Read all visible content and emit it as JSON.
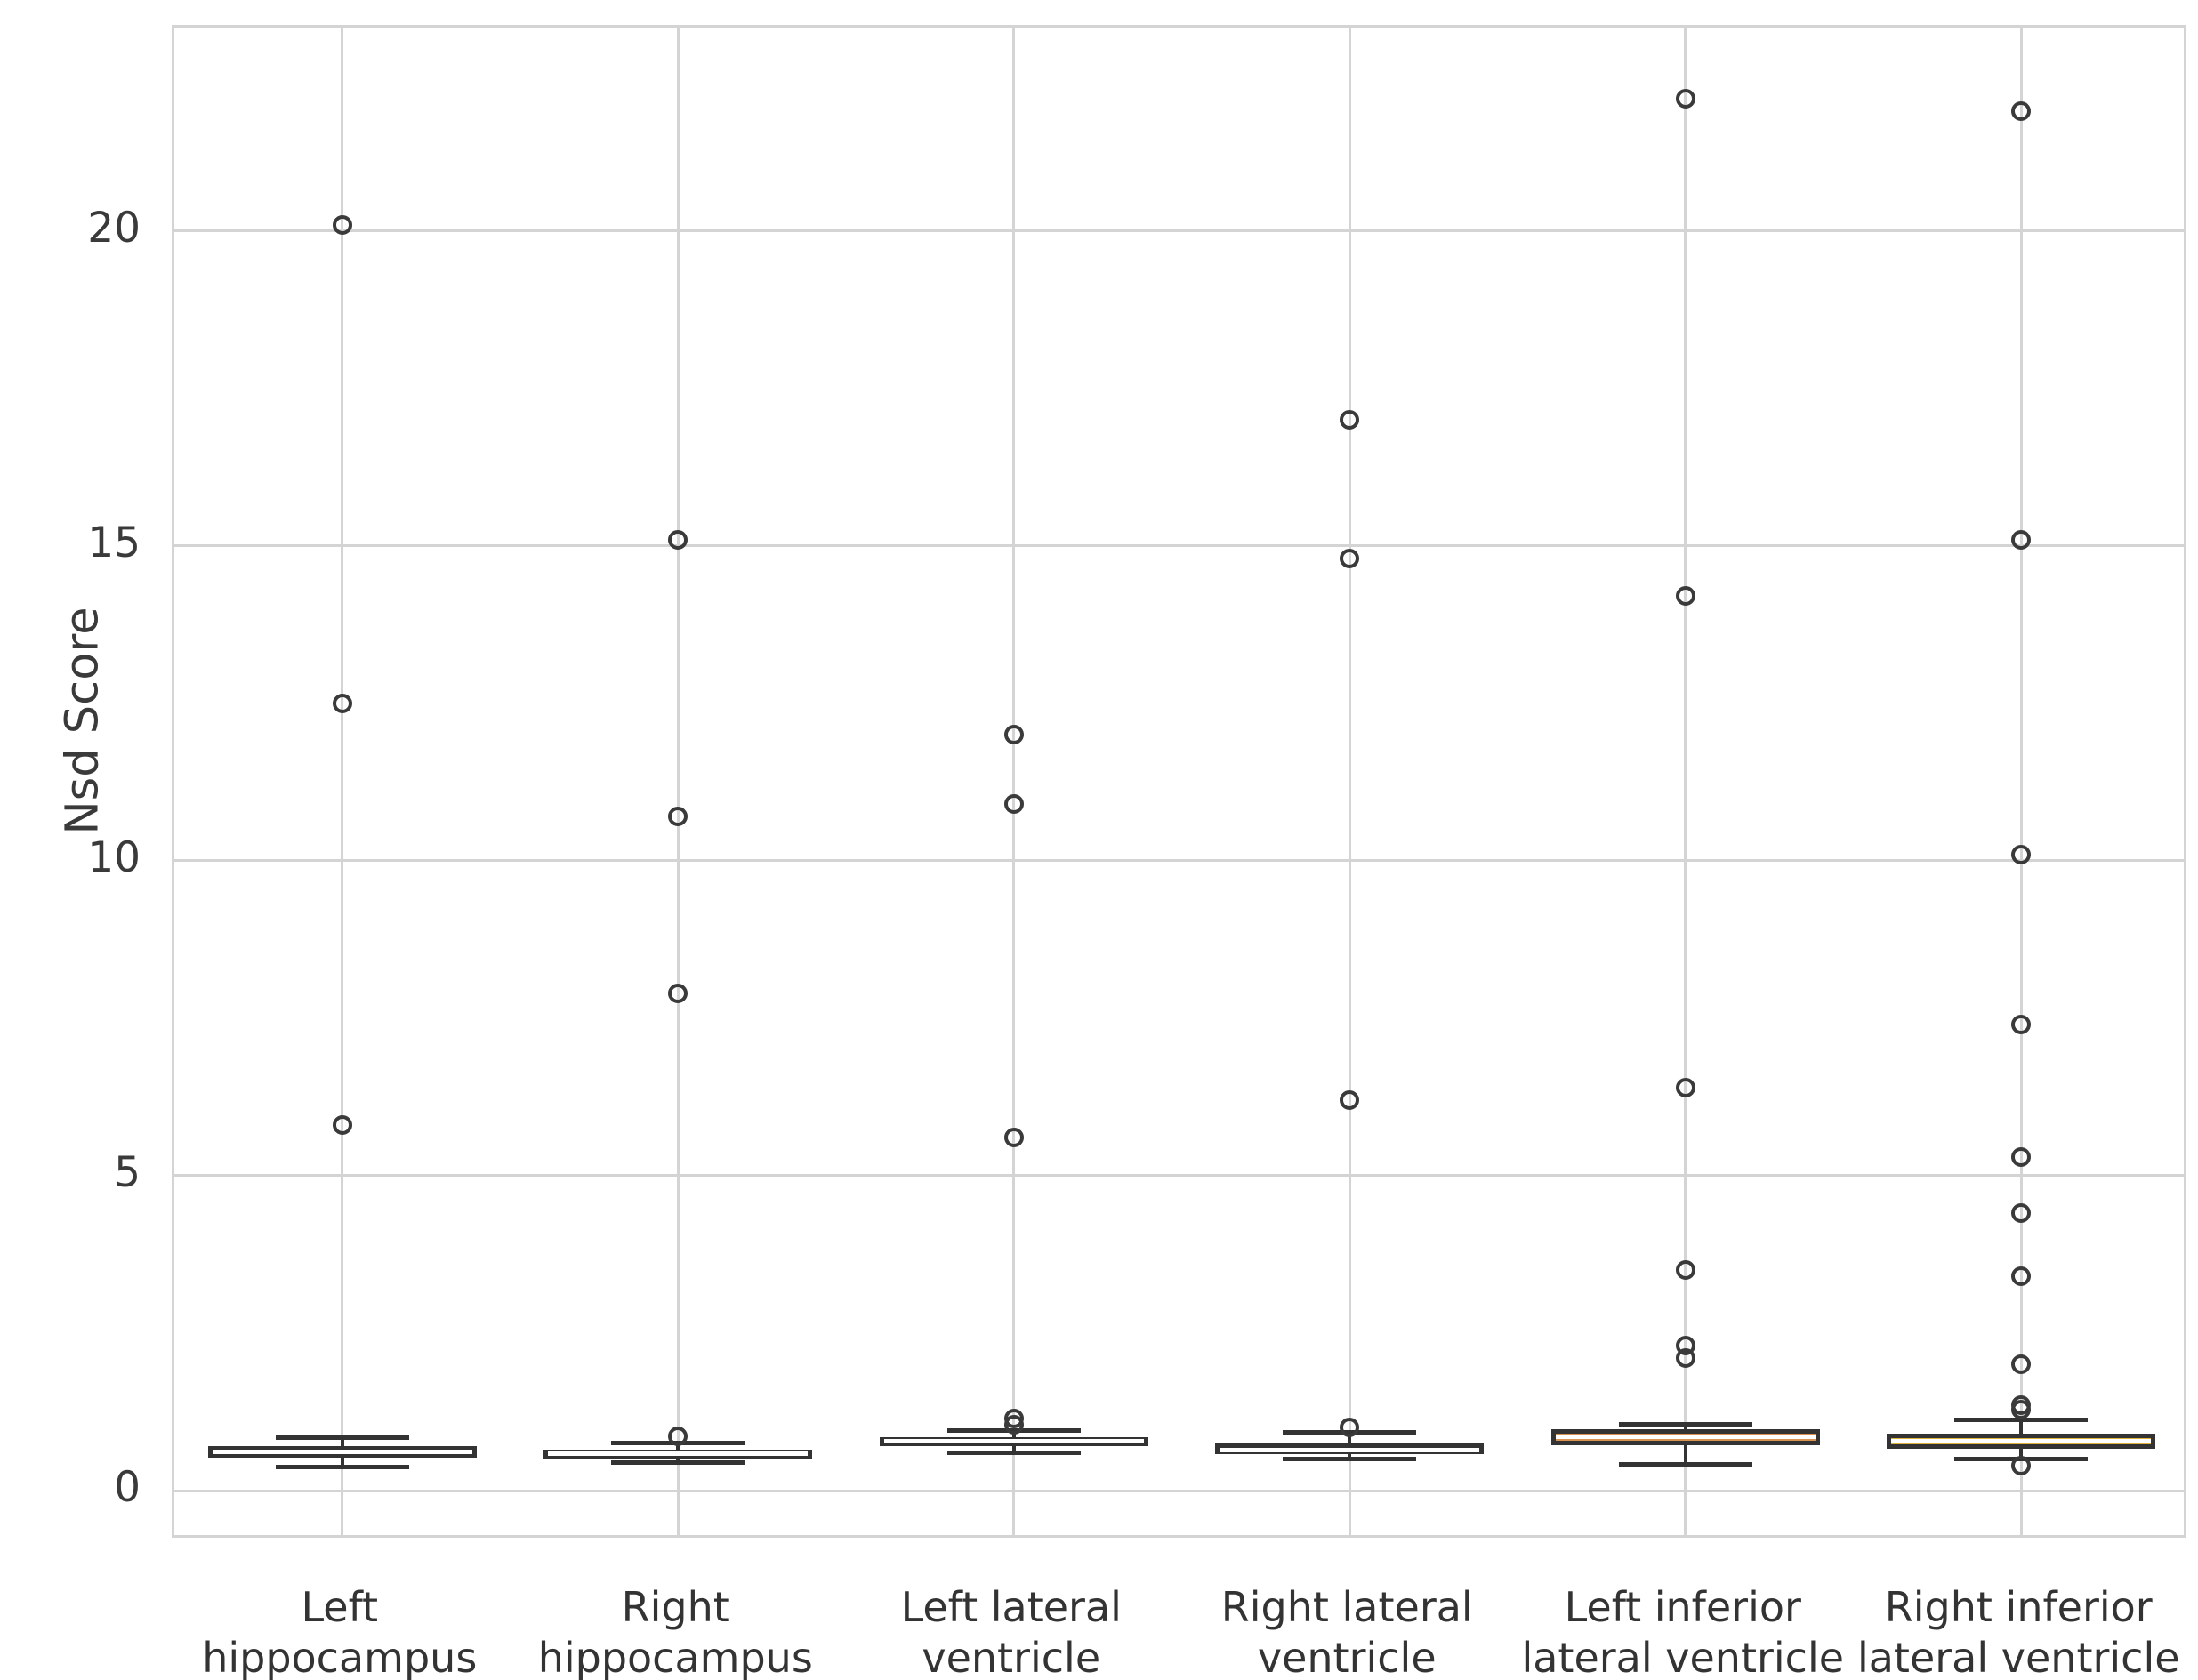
{
  "chart_data": {
    "type": "box",
    "title": "",
    "xlabel": "",
    "ylabel": "Nsd Score",
    "ylim": [
      -0.79,
      23.23
    ],
    "yticks": [
      0,
      5,
      10,
      15,
      20
    ],
    "grid": true,
    "legend": "none",
    "categories": [
      "Left hippocampus",
      "Right hippocampus",
      "Left lateral ventricle",
      "Right lateral ventricle",
      "Left inferior lateral ventricle",
      "Right inferior lateral ventricle"
    ],
    "boxes": [
      {
        "category": "Left hippocampus",
        "label_lines": [
          "Left",
          "hippocampus"
        ],
        "color": "#5b2c8b",
        "whisker_low": 0.38,
        "q1": 0.52,
        "median": 0.62,
        "q3": 0.7,
        "whisker_high": 0.84,
        "outliers": [
          5.8,
          12.5,
          20.1
        ]
      },
      {
        "category": "Right hippocampus",
        "label_lines": [
          "Right",
          "hippocampus"
        ],
        "color": "#8a3371",
        "whisker_low": 0.44,
        "q1": 0.5,
        "median": 0.58,
        "q3": 0.65,
        "whisker_high": 0.76,
        "outliers": [
          0.86,
          7.9,
          10.7,
          15.1
        ]
      },
      {
        "category": "Left lateral ventricle",
        "label_lines": [
          "Left lateral",
          "ventricle"
        ],
        "color": "#b3366f",
        "whisker_low": 0.6,
        "q1": 0.72,
        "median": 0.78,
        "q3": 0.85,
        "whisker_high": 0.96,
        "outliers": [
          1.05,
          1.15,
          5.6,
          10.9,
          12.0
        ]
      },
      {
        "category": "Right lateral ventricle",
        "label_lines": [
          "Right lateral",
          "ventricle"
        ],
        "color": "#cb5460",
        "whisker_low": 0.5,
        "q1": 0.58,
        "median": 0.64,
        "q3": 0.75,
        "whisker_high": 0.93,
        "outliers": [
          1.0,
          6.2,
          14.8,
          17.0
        ]
      },
      {
        "category": "Left inferior lateral ventricle",
        "label_lines": [
          "Left inferior",
          "lateral ventricle"
        ],
        "color": "#d9924f",
        "whisker_low": 0.42,
        "q1": 0.72,
        "median": 0.85,
        "q3": 0.97,
        "whisker_high": 1.05,
        "outliers": [
          2.1,
          2.3,
          3.5,
          6.4,
          14.2,
          22.1
        ]
      },
      {
        "category": "Right inferior lateral ventricle",
        "label_lines": [
          "Right inferior",
          "lateral ventricle"
        ],
        "color": "#dfb23e",
        "whisker_low": 0.5,
        "q1": 0.66,
        "median": 0.78,
        "q3": 0.9,
        "whisker_high": 1.12,
        "outliers": [
          0.4,
          1.28,
          1.36,
          2.0,
          3.4,
          4.4,
          5.3,
          7.4,
          10.1,
          15.1,
          21.9
        ]
      }
    ],
    "styles": {
      "box_border": "#333333",
      "median_color": "#ffffff",
      "grid_color": "#d4d4d4",
      "tick_color": "#3a3a3a",
      "flier_edge": "#3a3a3a",
      "background": "#ffffff"
    }
  }
}
